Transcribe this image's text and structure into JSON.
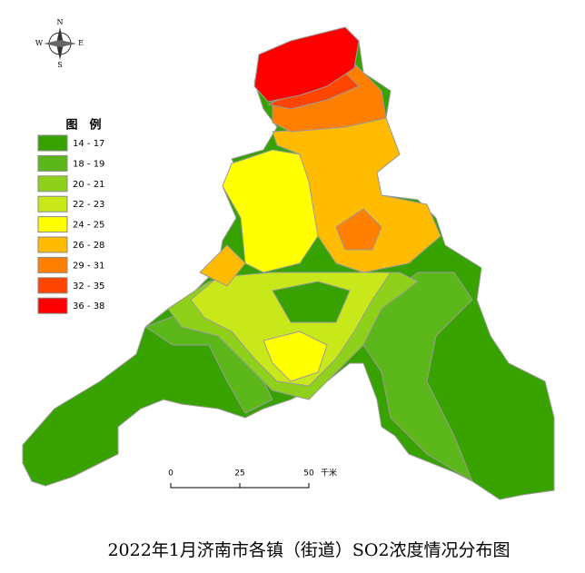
{
  "title": "2022年1月济南市各镇（街道）SO2浓度情况分布图",
  "legend": {
    "title": "图　例",
    "items": [
      {
        "label": "14 - 17",
        "color": "#38a300"
      },
      {
        "label": "18 - 19",
        "color": "#5cb81a"
      },
      {
        "label": "20 - 21",
        "color": "#8fd11a"
      },
      {
        "label": "22 - 23",
        "color": "#c8e81a"
      },
      {
        "label": "24 - 25",
        "color": "#ffff00"
      },
      {
        "label": "26 - 28",
        "color": "#ffbb00"
      },
      {
        "label": "29 - 31",
        "color": "#ff8000"
      },
      {
        "label": "32 - 35",
        "color": "#ff4500"
      },
      {
        "label": "36 - 38",
        "color": "#ff0000"
      }
    ]
  },
  "scale_bar": {
    "ticks": [
      "0",
      "25",
      "50"
    ],
    "unit": "千米"
  },
  "compass": {
    "n": "N",
    "w": "W",
    "e": "E",
    "s": "S"
  }
}
